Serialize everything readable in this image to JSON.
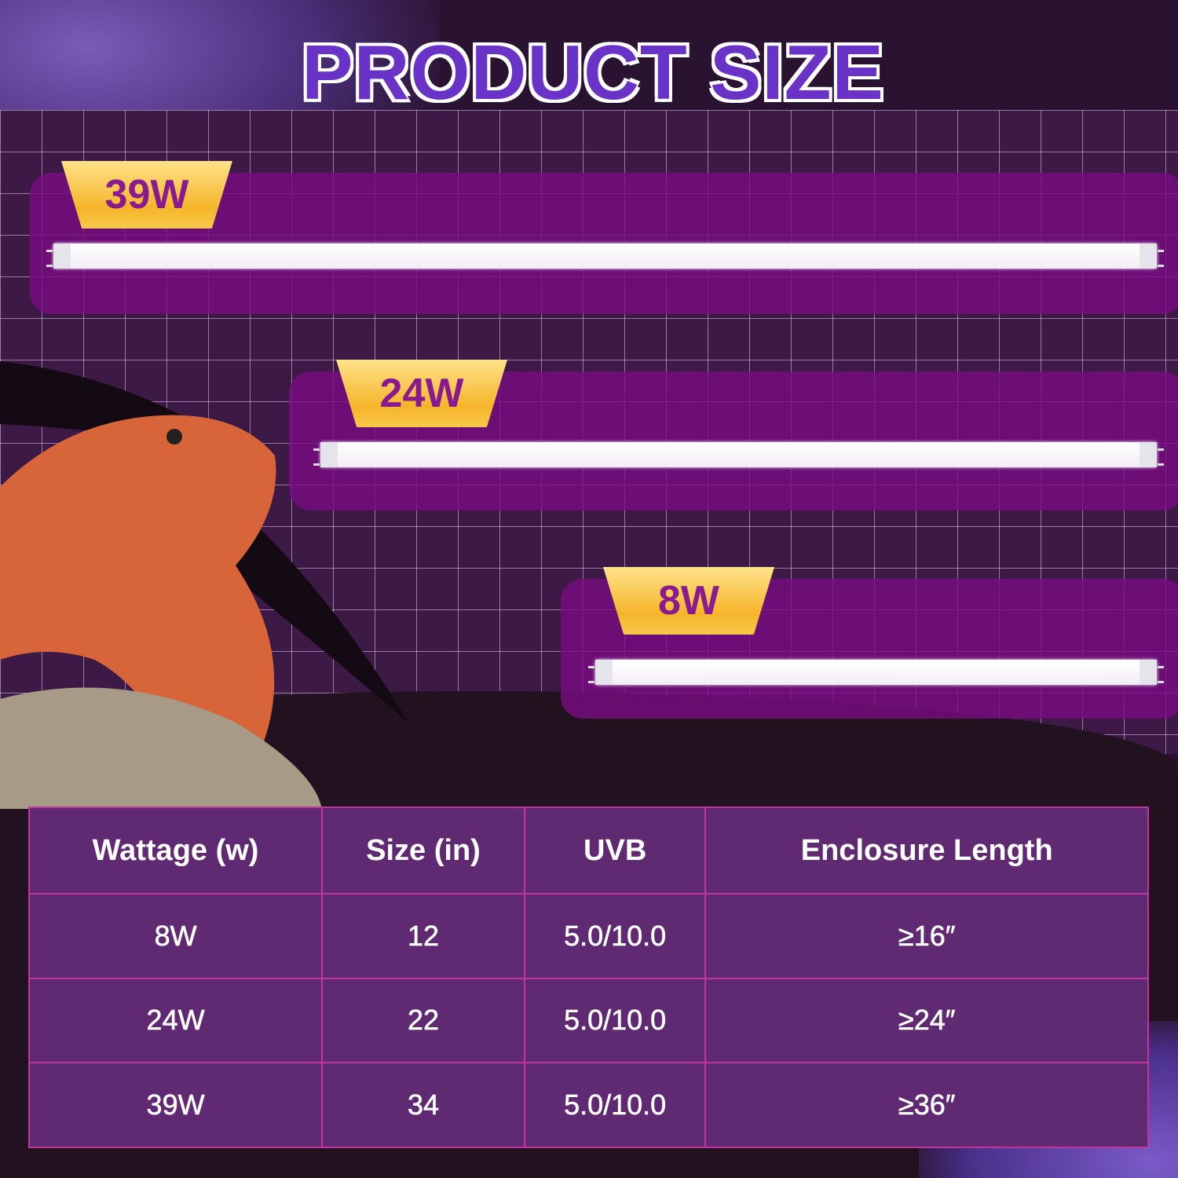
{
  "title": "PRODUCT SIZE",
  "lamps": [
    {
      "badge": "39W"
    },
    {
      "badge": "24W"
    },
    {
      "badge": "8W"
    }
  ],
  "table": {
    "headers": [
      "Wattage (w)",
      "Size (in)",
      "UVB",
      "Enclosure Length"
    ],
    "rows": [
      [
        "8W",
        "12",
        "5.0/10.0",
        "≥16″"
      ],
      [
        "24W",
        "22",
        "5.0/10.0",
        "≥24″"
      ],
      [
        "39W",
        "34",
        "5.0/10.0",
        "≥36″"
      ]
    ]
  },
  "colors": {
    "title": "#6a33c8",
    "panel": "#780c82",
    "badge": "#f5b52a",
    "table_bg": "#5f2a72",
    "table_border": "#c0359e"
  }
}
